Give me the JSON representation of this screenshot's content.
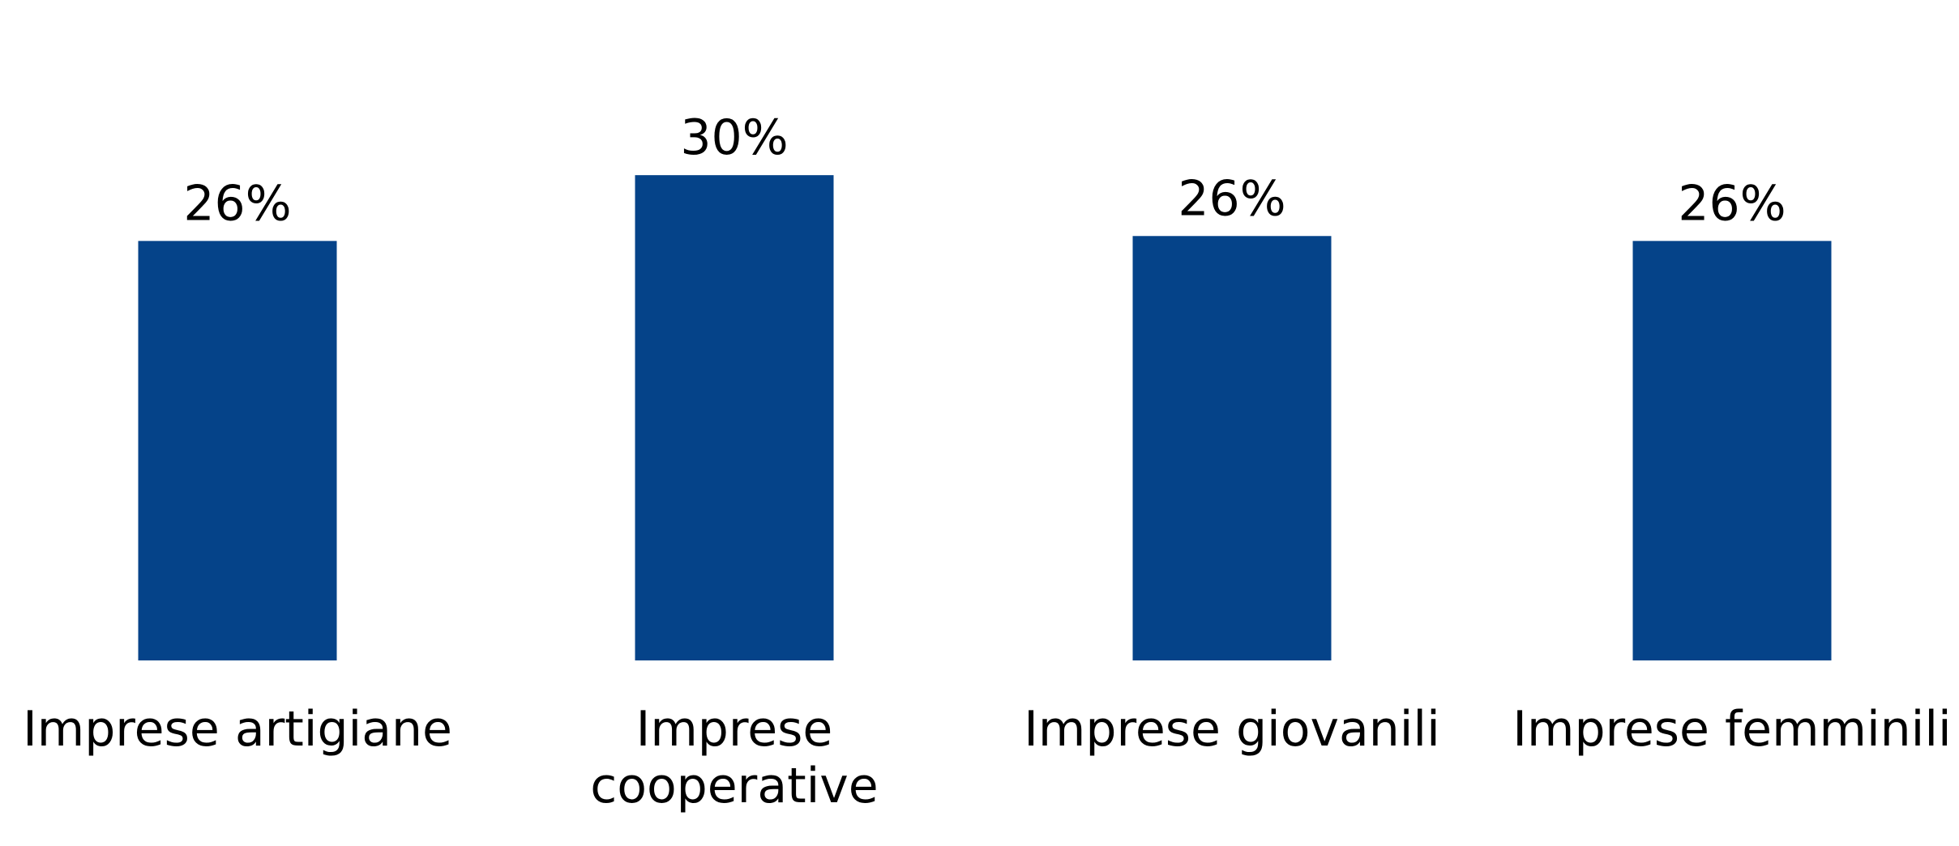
{
  "chart_data": {
    "type": "bar",
    "categories": [
      "Imprese artigiane",
      "Imprese cooperative",
      "Imprese giovanili",
      "Imprese femminili"
    ],
    "category_lines": [
      [
        "Imprese artigiane"
      ],
      [
        "Imprese",
        "cooperative"
      ],
      [
        "Imprese giovanili"
      ],
      [
        "Imprese femminili"
      ]
    ],
    "values": [
      25.5,
      29.5,
      25.8,
      25.5
    ],
    "data_labels": [
      "26%",
      "30%",
      "26%",
      "26%"
    ],
    "title": "",
    "xlabel": "",
    "ylabel": "",
    "ylim": [
      0,
      30
    ],
    "grid": false,
    "legend": "none",
    "bar_color": "#054389"
  }
}
